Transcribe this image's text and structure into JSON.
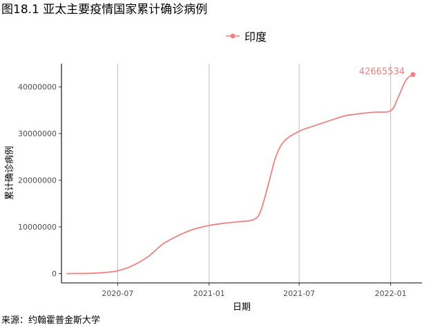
{
  "title": "图18.1 亚太主要疫情国家累计确诊病例",
  "source": "来源：约翰霍普金斯大学",
  "chart_data": {
    "type": "line",
    "xlabel": "日期",
    "ylabel": "累计确诊病例",
    "x_ticks": [
      "2020-07",
      "2021-01",
      "2021-07",
      "2022-01"
    ],
    "y_ticks": [
      0,
      10000000,
      20000000,
      30000000,
      40000000
    ],
    "y_tick_labels": [
      "0",
      "10000000",
      "20000000",
      "30000000",
      "40000000"
    ],
    "xlim": [
      "2020-03-10",
      "2022-03-05"
    ],
    "ylim": [
      -2000000,
      45000000
    ],
    "grid": "vertical-major",
    "legend_position": "top",
    "series": [
      {
        "name": "印度",
        "color": "#F08080",
        "x": [
          "2020-03-20",
          "2020-05-01",
          "2020-06-01",
          "2020-07-01",
          "2020-08-01",
          "2020-09-01",
          "2020-10-01",
          "2020-11-01",
          "2020-12-01",
          "2021-01-01",
          "2021-02-01",
          "2021-03-01",
          "2021-04-01",
          "2021-04-15",
          "2021-05-01",
          "2021-05-15",
          "2021-06-01",
          "2021-07-01",
          "2021-08-01",
          "2021-09-01",
          "2021-10-01",
          "2021-11-01",
          "2021-12-01",
          "2022-01-01",
          "2022-01-15",
          "2022-02-01",
          "2022-02-15"
        ],
        "values": [
          0,
          35000,
          190000,
          600000,
          1750000,
          3700000,
          6400000,
          8200000,
          9500000,
          10300000,
          10800000,
          11100000,
          11600000,
          13500000,
          19500000,
          25000000,
          28400000,
          30500000,
          31700000,
          32800000,
          33800000,
          34300000,
          34600000,
          34900000,
          37500000,
          41500000,
          42665534
        ]
      }
    ],
    "annotations": [
      {
        "text": "42665534",
        "x": "2022-02-15",
        "y": 42665534
      }
    ]
  }
}
